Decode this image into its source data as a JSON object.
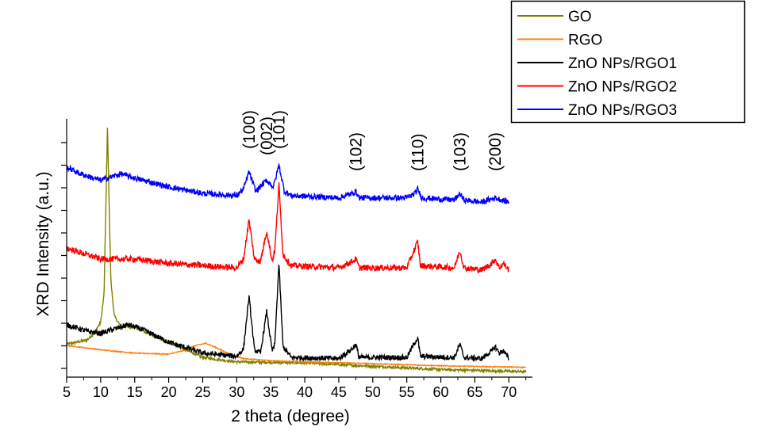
{
  "chart_data": {
    "type": "line",
    "title": "",
    "xlabel": "2 theta (degree)",
    "ylabel": "XRD Intensity (a.u.)",
    "xlim": [
      5,
      73
    ],
    "x_ticks": [
      "5",
      "10",
      "15",
      "20",
      "25",
      "30",
      "35",
      "40",
      "45",
      "50",
      "55",
      "60",
      "65",
      "70"
    ],
    "y_ticks_labeled": false,
    "grid": false,
    "legend_position": "top-right",
    "peak_labels": [
      {
        "text": "(100)",
        "x": 31.8
      },
      {
        "text": "(002)",
        "x": 34.4
      },
      {
        "text": "(101)",
        "x": 36.2
      },
      {
        "text": "(102)",
        "x": 47.5
      },
      {
        "text": "(110)",
        "x": 56.6
      },
      {
        "text": "(103)",
        "x": 62.8
      },
      {
        "text": "(200)",
        "x": 68.0
      }
    ],
    "series": [
      {
        "name": "GO",
        "color": "#808000",
        "x": [
          5,
          8,
          9,
          10,
          10.5,
          11,
          11.5,
          12,
          13,
          15,
          17,
          20,
          25,
          30,
          40,
          50,
          60,
          72.5
        ],
        "y": [
          1.1,
          1.3,
          1.6,
          2.1,
          3.4,
          11.0,
          4.0,
          2.4,
          1.9,
          1.9,
          1.6,
          1.2,
          0.5,
          0.3,
          0.25,
          0.1,
          -0.05,
          -0.15
        ]
      },
      {
        "name": "RGO",
        "color": "#ff7f0e",
        "x": [
          5,
          10,
          15,
          20,
          22,
          24,
          25.5,
          27,
          29,
          31,
          35,
          40,
          50,
          60,
          72.5
        ],
        "y": [
          1.05,
          0.85,
          0.7,
          0.65,
          0.8,
          1.05,
          1.15,
          0.95,
          0.65,
          0.45,
          0.35,
          0.3,
          0.22,
          0.12,
          0.05
        ]
      },
      {
        "name": "ZnO NPs/RGO1",
        "color": "#000000",
        "x": [
          5,
          8,
          10,
          12,
          14,
          16,
          20,
          25,
          30,
          31,
          31.8,
          32.6,
          33.5,
          34.4,
          35.2,
          35.6,
          36.2,
          36.8,
          38,
          45,
          47,
          47.5,
          48,
          55,
          56.2,
          56.6,
          57,
          62,
          62.8,
          63.4,
          66,
          67.5,
          68.0,
          68.6,
          69.2,
          70
        ],
        "y": [
          2.0,
          1.7,
          1.6,
          1.8,
          2.0,
          1.8,
          1.2,
          0.7,
          0.55,
          0.9,
          3.3,
          0.85,
          0.7,
          2.6,
          0.8,
          1.1,
          4.8,
          1.0,
          0.5,
          0.45,
          0.9,
          1.1,
          0.5,
          0.5,
          1.2,
          1.4,
          0.55,
          0.5,
          1.1,
          0.5,
          0.45,
          0.8,
          1.0,
          0.7,
          0.8,
          0.45
        ]
      },
      {
        "name": "ZnO NPs/RGO2",
        "color": "#ff0000",
        "x": [
          5,
          8,
          10,
          15,
          20,
          25,
          30,
          31,
          31.8,
          32.6,
          33.5,
          34.4,
          35.2,
          35.6,
          36.2,
          36.8,
          38,
          45,
          47,
          47.5,
          48,
          55,
          56.2,
          56.6,
          57,
          62,
          62.8,
          63.4,
          66,
          67.5,
          68.0,
          68.6,
          69.2,
          70
        ],
        "y": [
          5.5,
          5.2,
          5.0,
          5.0,
          4.8,
          4.7,
          4.6,
          5.0,
          6.8,
          5.0,
          4.9,
          6.3,
          4.9,
          5.4,
          8.4,
          5.2,
          4.7,
          4.6,
          4.9,
          5.0,
          4.6,
          4.6,
          5.5,
          5.8,
          4.7,
          4.6,
          5.4,
          4.6,
          4.5,
          4.8,
          5.0,
          4.6,
          4.8,
          4.5
        ]
      },
      {
        "name": "ZnO NPs/RGO3",
        "color": "#0000ff",
        "x": [
          5,
          7,
          10,
          13,
          15,
          20,
          25,
          30,
          31,
          31.8,
          32.8,
          34.4,
          35.4,
          36.2,
          37,
          38,
          45,
          47,
          47.5,
          48,
          55,
          56.2,
          56.6,
          57.2,
          62,
          62.8,
          63.4,
          66,
          68,
          70
        ],
        "y": [
          9.2,
          8.9,
          8.6,
          8.9,
          8.7,
          8.3,
          8.0,
          7.9,
          8.2,
          9.0,
          8.1,
          8.6,
          8.3,
          9.3,
          8.1,
          7.9,
          7.8,
          8.0,
          8.1,
          7.8,
          7.8,
          8.0,
          8.2,
          7.8,
          7.7,
          8.0,
          7.7,
          7.6,
          7.8,
          7.6
        ]
      }
    ]
  }
}
